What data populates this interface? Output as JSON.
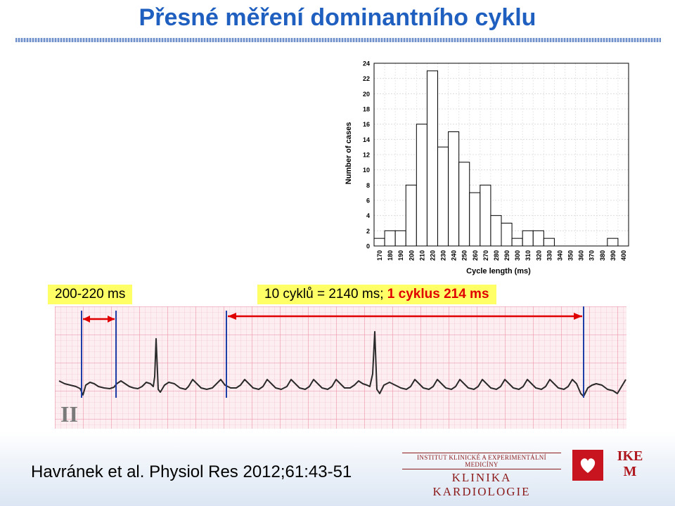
{
  "title": "Přesné měření dominantního cyklu",
  "labels": {
    "short_range": "200-220 ms",
    "cycles_prefix": "10 cyklů = 2140 ms; ",
    "cycles_red": "1 cyklus 214 ms"
  },
  "ecg": {
    "lead_label": "II"
  },
  "citation": "Havránek et al. Physiol Res 2012;61:43-51",
  "institution": {
    "line1": "INSTITUT KLINICKÉ A EXPERIMENTÁLNÍ MEDICÍNY",
    "line2": "KLINIKA KARDIOLOGIE",
    "logo_text_1": "IKE",
    "logo_text_2": "M"
  },
  "colors": {
    "title": "#1f5fbf",
    "highlight": "#ffff66",
    "arrow_red": "#e00000",
    "marker_blue": "#1f3fa8",
    "institution_red": "#b01820"
  },
  "chart_data": {
    "type": "bar",
    "xlabel": "Cycle length (ms)",
    "ylabel": "Number of cases",
    "ylim": [
      0,
      24
    ],
    "yticks": [
      0,
      2,
      4,
      6,
      8,
      10,
      12,
      14,
      16,
      18,
      20,
      22,
      24
    ],
    "categories": [
      "170",
      "180",
      "190",
      "200",
      "210",
      "220",
      "230",
      "240",
      "250",
      "260",
      "270",
      "280",
      "290",
      "300",
      "310",
      "320",
      "330",
      "340",
      "350",
      "360",
      "370",
      "380",
      "390",
      "400"
    ],
    "values": [
      1,
      2,
      2,
      8,
      16,
      23,
      13,
      15,
      11,
      7,
      8,
      4,
      3,
      1,
      2,
      2,
      1,
      0,
      0,
      0,
      0,
      0,
      1,
      0
    ],
    "grid": true,
    "legend": "none"
  }
}
